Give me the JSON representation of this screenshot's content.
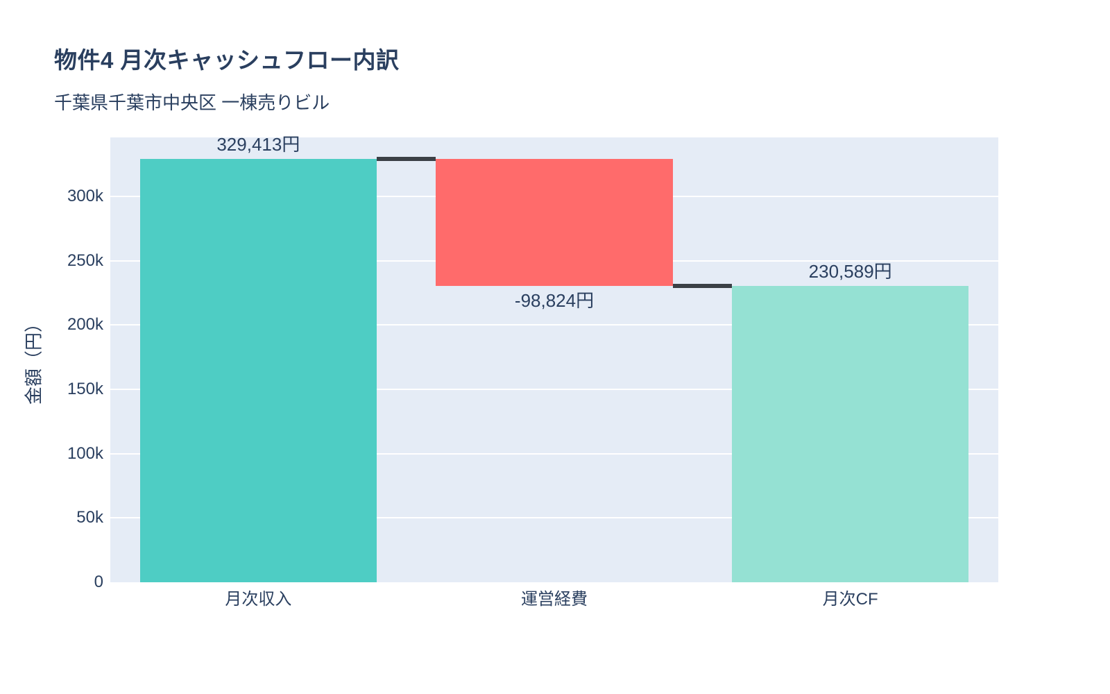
{
  "page": {
    "title": "物件4 月次キャッシュフロー内訳",
    "subtitle": "千葉県千葉市中央区 一棟売りビル"
  },
  "chart_data": {
    "type": "waterfall",
    "title": "物件4 月次キャッシュフロー内訳",
    "subtitle": "千葉県千葉市中央区 一棟売りビル",
    "categories": [
      "月次収入",
      "運営経費",
      "月次CF"
    ],
    "values": [
      329413,
      -98824,
      230589
    ],
    "measures": [
      "relative",
      "relative",
      "total"
    ],
    "bar_labels": [
      "329,413円",
      "-98,824円",
      "230,589円"
    ],
    "xlabel": "",
    "ylabel": "金額（円）",
    "ylim": [
      0,
      346000
    ],
    "yticks": {
      "values": [
        0,
        50000,
        100000,
        150000,
        200000,
        250000,
        300000
      ],
      "labels": [
        "0",
        "50k",
        "100k",
        "150k",
        "200k",
        "250k",
        "300k"
      ]
    },
    "grid": true,
    "legend": false,
    "bar_width_ratio": 0.8,
    "colors": {
      "increasing": "#4ECDC4",
      "decreasing": "#FF6B6B",
      "total": "#95E1D3",
      "connector": "#3B4046",
      "plot_background": "#E5ECF6",
      "gridline": "#FFFFFF",
      "text": "#2A3F5F"
    }
  }
}
